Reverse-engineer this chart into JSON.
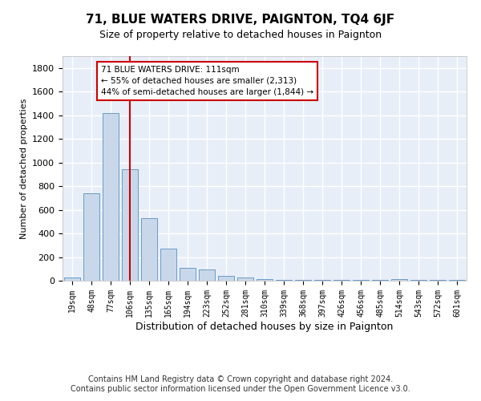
{
  "title": "71, BLUE WATERS DRIVE, PAIGNTON, TQ4 6JF",
  "subtitle": "Size of property relative to detached houses in Paignton",
  "xlabel": "Distribution of detached houses by size in Paignton",
  "ylabel": "Number of detached properties",
  "footnote": "Contains HM Land Registry data © Crown copyright and database right 2024.\nContains public sector information licensed under the Open Government Licence v3.0.",
  "categories": [
    "19sqm",
    "48sqm",
    "77sqm",
    "106sqm",
    "135sqm",
    "165sqm",
    "194sqm",
    "223sqm",
    "252sqm",
    "281sqm",
    "310sqm",
    "339sqm",
    "368sqm",
    "397sqm",
    "426sqm",
    "456sqm",
    "485sqm",
    "514sqm",
    "543sqm",
    "572sqm",
    "601sqm"
  ],
  "values": [
    25,
    740,
    1420,
    940,
    530,
    270,
    110,
    95,
    40,
    25,
    15,
    5,
    5,
    5,
    5,
    5,
    5,
    15,
    5,
    5,
    5
  ],
  "bar_color": "#c8d8ea",
  "bar_edge_color": "#5a8fc0",
  "redline_index": 3,
  "redline_color": "#cc0000",
  "annotation_line1": "71 BLUE WATERS DRIVE: 111sqm",
  "annotation_line2": "← 55% of detached houses are smaller (2,313)",
  "annotation_line3": "44% of semi-detached houses are larger (1,844) →",
  "annotation_box_color": "#cc0000",
  "ylim": [
    0,
    1900
  ],
  "yticks": [
    0,
    200,
    400,
    600,
    800,
    1000,
    1200,
    1400,
    1600,
    1800
  ],
  "background_color": "#e8eef8",
  "grid_color": "#ffffff",
  "title_fontsize": 11,
  "subtitle_fontsize": 9,
  "ylabel_fontsize": 8,
  "xlabel_fontsize": 9,
  "tick_fontsize": 7,
  "footnote_fontsize": 7
}
